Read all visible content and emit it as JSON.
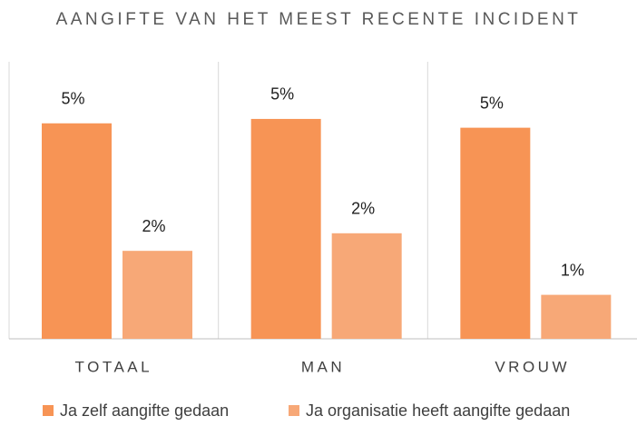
{
  "chart_data": {
    "type": "bar",
    "title": "AANGIFTE VAN HET MEEST RECENTE INCIDENT",
    "categories": [
      "TOTAAL",
      "MAN",
      "VROUW"
    ],
    "series": [
      {
        "name": "Ja zelf aangifte gedaan",
        "color": "#f79455",
        "values": [
          4.9,
          5.0,
          4.8
        ],
        "value_labels": [
          "5%",
          "5%",
          "5%"
        ]
      },
      {
        "name": "Ja organisatie heeft aangifte gedaan",
        "color": "#f7a877",
        "values": [
          2.0,
          2.4,
          1.0
        ],
        "value_labels": [
          "2%",
          "2%",
          "1%"
        ]
      }
    ],
    "ylim": [
      0,
      6.3
    ]
  }
}
